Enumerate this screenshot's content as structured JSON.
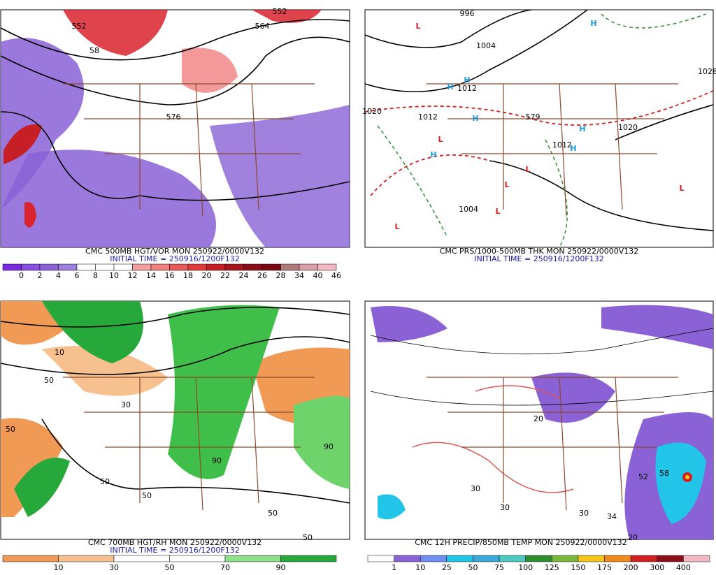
{
  "panels": [
    {
      "caption": "CMC 500MB HGT/VOR MON 250922/0000V132",
      "initial_time": "INITIAL TIME = 250916/1200F132",
      "colorbar": [
        "0",
        "2",
        "4",
        "6",
        "8",
        "10",
        "12",
        "14",
        "16",
        "18",
        "20",
        "22",
        "24",
        "26",
        "28",
        "34",
        "40",
        "46"
      ],
      "contour_labels": [
        "552",
        "564",
        "576",
        "58",
        "552"
      ]
    },
    {
      "caption": "CMC PRS/1000-500MB THK MON 250922/0000V132",
      "initial_time": "INITIAL TIME = 250916/1200F132",
      "contour_labels": [
        "996",
        "1004",
        "1012",
        "1012",
        "1020",
        "1028",
        "579",
        "1012",
        "1020",
        "1004"
      ],
      "highs": [
        "H",
        "H",
        "H",
        "H",
        "H",
        "H",
        "H"
      ],
      "lows": [
        "L",
        "L",
        "L",
        "L",
        "L",
        "L",
        "L"
      ]
    },
    {
      "caption": "CMC 700MB HGT/RH MON 250922/0000V132",
      "initial_time": "INITIAL TIME = 250916/1200F132",
      "colorbar": [
        "10",
        "30",
        "50",
        "70",
        "90"
      ],
      "contour_labels": [
        "50",
        "50",
        "50",
        "30",
        "50",
        "90",
        "50",
        "50",
        "10",
        "90"
      ]
    },
    {
      "caption": "CMC 12H PRECIP/850MB TEMP MON 250922/0000V132",
      "colorbar": [
        "1",
        "10",
        "25",
        "50",
        "75",
        "100",
        "125",
        "150",
        "175",
        "200",
        "300",
        "400"
      ],
      "contour_labels": [
        "20",
        "30",
        "30",
        "52",
        "58",
        "30",
        "34",
        "20"
      ]
    }
  ]
}
